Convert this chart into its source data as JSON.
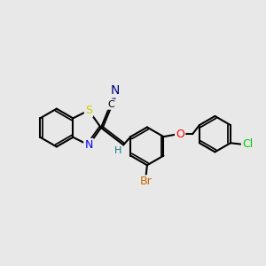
{
  "background_color": "#e8e8e8",
  "bond_color": "#000000",
  "bond_width": 1.5,
  "atom_colors": {
    "S": "#cccc00",
    "N_ring": "#0000ff",
    "N_cyano": "#000080",
    "Br": "#cc6600",
    "O": "#ff0000",
    "Cl": "#00cc00",
    "C": "#000000",
    "H": "#008080"
  },
  "font_size_atoms": 9,
  "font_size_small": 7
}
